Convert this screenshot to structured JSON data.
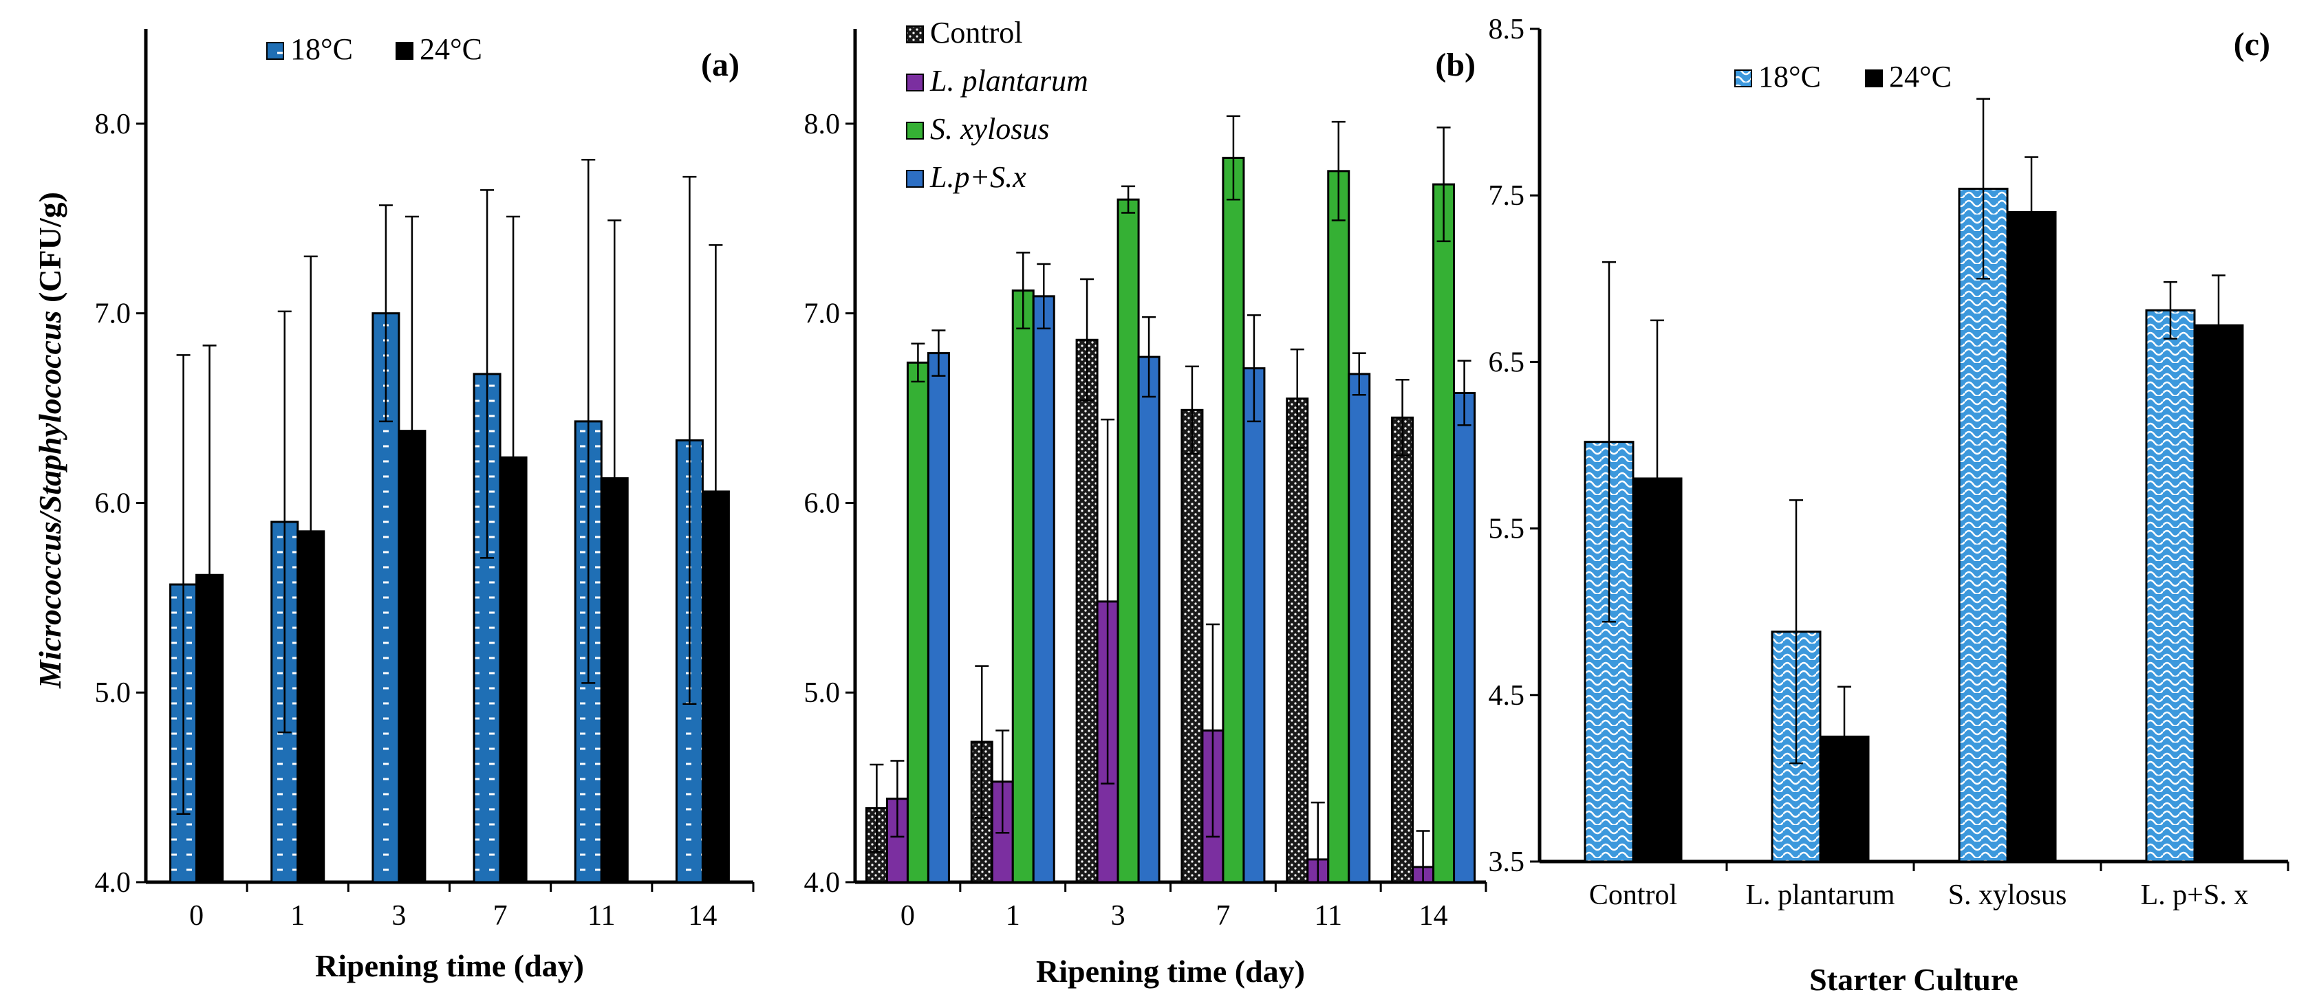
{
  "y_axis_title": {
    "italic": "Micrococcus/Staphylococcus",
    "plain": " (CFU/g)"
  },
  "colors": {
    "blue": "#1f6fb5",
    "black": "#000000",
    "purple": "#7b2fa0",
    "green": "#35b034",
    "blue_b": "#2d6fc4",
    "dark": "#222222",
    "light_blue_c": "#4aa3e0"
  },
  "chart_data": [
    {
      "type": "bar",
      "panel_label": "(a)",
      "xlabel": "Ripening time (day)",
      "ylim": [
        4.0,
        8.5
      ],
      "yticks": [
        4.0,
        5.0,
        6.0,
        7.0,
        8.0
      ],
      "ytick_labels": [
        "4.0",
        "5.0",
        "6.0",
        "7.0",
        "8.0"
      ],
      "categories": [
        "0",
        "1",
        "3",
        "7",
        "11",
        "14"
      ],
      "legend_position": "top",
      "series": [
        {
          "name": "18°C",
          "values": [
            5.57,
            5.9,
            7.0,
            6.68,
            6.43,
            6.33
          ],
          "errors": [
            1.21,
            1.11,
            0.57,
            0.97,
            1.38,
            1.39
          ],
          "pattern": "dash-blue"
        },
        {
          "name": "24°C",
          "values": [
            5.62,
            5.85,
            6.38,
            6.24,
            6.13,
            6.06
          ],
          "errors": [
            1.21,
            1.45,
            1.13,
            1.27,
            1.36,
            1.3
          ],
          "pattern": "solid-black"
        }
      ]
    },
    {
      "type": "bar",
      "panel_label": "(b)",
      "xlabel": "Ripening time (day)",
      "ylim": [
        4.0,
        8.5
      ],
      "yticks": [
        4.0,
        5.0,
        6.0,
        7.0,
        8.0
      ],
      "ytick_labels": [
        "4.0",
        "5.0",
        "6.0",
        "7.0",
        "8.0"
      ],
      "categories": [
        "0",
        "1",
        "3",
        "7",
        "11",
        "14"
      ],
      "legend_position": "top-left",
      "series": [
        {
          "name": "Control",
          "italic": false,
          "values": [
            4.39,
            4.74,
            6.86,
            6.49,
            6.55,
            6.45
          ],
          "errors": [
            0.23,
            0.4,
            0.32,
            0.23,
            0.26,
            0.2
          ],
          "pattern": "dots-black"
        },
        {
          "name": "L. plantarum",
          "italic": true,
          "values": [
            4.44,
            4.53,
            5.48,
            4.8,
            4.12,
            4.08
          ],
          "errors": [
            0.2,
            0.27,
            0.96,
            0.56,
            0.3,
            0.19
          ],
          "pattern": "solid-purple"
        },
        {
          "name": "S. xylosus",
          "italic": true,
          "values": [
            6.74,
            7.12,
            7.6,
            7.82,
            7.75,
            7.68
          ],
          "errors": [
            0.1,
            0.2,
            0.07,
            0.22,
            0.26,
            0.3
          ],
          "pattern": "solid-green"
        },
        {
          "name": "L.p+S.x",
          "italic": true,
          "values": [
            6.79,
            7.09,
            6.77,
            6.71,
            6.68,
            6.58
          ],
          "errors": [
            0.12,
            0.17,
            0.21,
            0.28,
            0.11,
            0.17
          ],
          "pattern": "solid-blue"
        }
      ]
    },
    {
      "type": "bar",
      "panel_label": "(c)",
      "xlabel": "Starter Culture",
      "ylim": [
        3.5,
        8.5
      ],
      "yticks": [
        3.5,
        4.5,
        5.5,
        6.5,
        7.5,
        8.5
      ],
      "ytick_labels": [
        "3.5",
        "4.5",
        "5.5",
        "6.5",
        "7.5",
        "8.5"
      ],
      "categories": [
        "Control",
        "L. plantarum",
        "S. xylosus",
        "L. p+S. x"
      ],
      "legend_position": "top-left",
      "series": [
        {
          "name": "18°C",
          "values": [
            6.02,
            4.88,
            7.54,
            6.81
          ],
          "errors": [
            1.08,
            0.79,
            0.54,
            0.17
          ],
          "pattern": "wave-blue"
        },
        {
          "name": "24°C",
          "values": [
            5.8,
            4.25,
            7.4,
            6.72
          ],
          "errors": [
            0.95,
            0.3,
            0.33,
            0.3
          ],
          "pattern": "solid-black"
        }
      ]
    }
  ]
}
